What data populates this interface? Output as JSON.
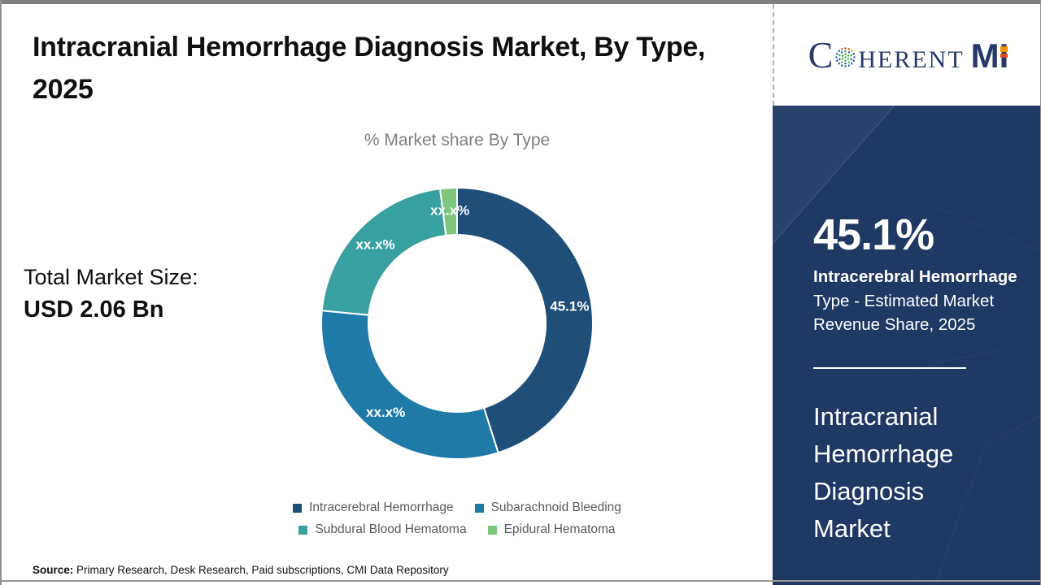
{
  "page": {
    "title": "Intracranial Hemorrhage Diagnosis Market, By Type, 2025",
    "source_label": "Source:",
    "source_text": " Primary Research, Desk Research, Paid subscriptions, CMI Data Repository"
  },
  "logo": {
    "part1": "C",
    "part2": "HERENT",
    "part3": "M",
    "part4": "I",
    "globe_icon": "dotted-globe",
    "navy": "#27396b",
    "orange": "#f29100",
    "red": "#dd4b27"
  },
  "left_stats": {
    "label": "Total Market Size:",
    "value": "USD 2.06 Bn"
  },
  "chart_data": {
    "type": "pie",
    "donut": true,
    "title": "% Market share By Type",
    "labels": [
      "Intracerebral Hemorrhage",
      "Subarachnoid Bleeding",
      "Subdural Blood Hematoma",
      "Epidural Hematoma"
    ],
    "values": [
      45.1,
      31.4,
      21.5,
      2.0
    ],
    "display_labels": [
      "45.1%",
      "xx.x%",
      "xx.x%",
      "xx.x%"
    ],
    "colors": [
      "#1f4e79",
      "#1f7aa8",
      "#39a0a0",
      "#7cc67e"
    ],
    "start_angle_deg": 0,
    "inner_radius_ratio": 0.65,
    "label_radius": 140,
    "legend_position": "bottom",
    "legend_rows": [
      [
        0,
        1
      ],
      [
        2,
        3
      ]
    ]
  },
  "panel": {
    "background": "#1f3864",
    "stat_value": "45.1%",
    "stat_label_bold": "Intracerebral Hemorrhage",
    "stat_label_rest": "Type - Estimated Market Revenue Share, 2025",
    "footer_title": "Intracranial Hemorrhage Diagnosis Market"
  }
}
